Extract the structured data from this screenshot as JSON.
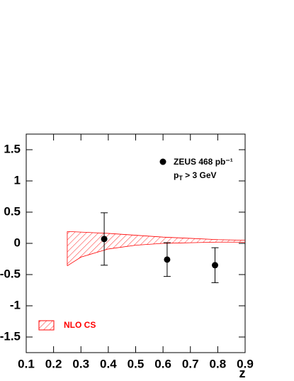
{
  "chart_data": {
    "type": "errorbar",
    "x_label": "z",
    "xlim": [
      0.1,
      0.9
    ],
    "xticks": [
      0.1,
      0.2,
      0.3,
      0.4,
      0.5,
      0.6,
      0.7,
      0.8,
      0.9
    ],
    "ylim": [
      -1.75,
      1.75
    ],
    "yticks": [
      -1.5,
      -1,
      -0.5,
      0,
      0.5,
      1,
      1.5
    ],
    "series": [
      {
        "name": "ZEUS 468 pb⁻¹",
        "color": "#000000",
        "x": [
          0.385,
          0.615,
          0.79
        ],
        "values": [
          0.07,
          -0.26,
          -0.35
        ],
        "errors": [
          0.42,
          0.27,
          0.28
        ]
      }
    ],
    "band": {
      "name": "NLO CS",
      "color": "#ff0000",
      "x": [
        0.25,
        0.3,
        0.4,
        0.5,
        0.6,
        0.7,
        0.8,
        0.9
      ],
      "upper": [
        0.19,
        0.18,
        0.16,
        0.13,
        0.1,
        0.08,
        0.06,
        0.05
      ],
      "lower": [
        -0.36,
        -0.22,
        -0.09,
        -0.03,
        0.0,
        0.01,
        0.02,
        0.02
      ]
    },
    "annotation": [
      "p",
      "T",
      " > 3 GeV"
    ]
  }
}
